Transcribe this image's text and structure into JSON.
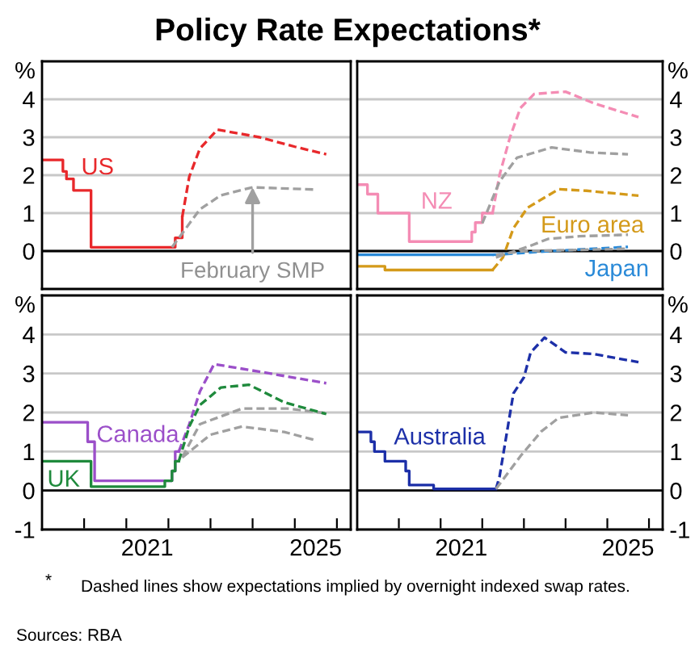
{
  "chart_data": [
    {
      "type": "line",
      "title": "Policy Rate Expectations*",
      "ylabel": "%",
      "xlim": [
        "2019-01",
        "2026-05"
      ],
      "ylim": [
        -1,
        5
      ],
      "yticks": [
        0,
        1,
        2,
        3,
        4
      ],
      "tick_labels": "y",
      "grid": "y",
      "ref_lines": [
        {
          "axis": "y",
          "value": 0,
          "color": "#000000"
        }
      ],
      "annotations": [
        {
          "text": "February SMP",
          "x": "2024-01",
          "y": 1.68
        },
        "*",
        "Dashed lines show expectations implied by overnight indexed swap rates.",
        "Sources: RBA"
      ],
      "series": [
        {
          "name": "US",
          "type": "step",
          "line_style": "solid",
          "color": "#e8282b",
          "x": [
            "2019-01",
            "2019-07",
            "2019-08",
            "2019-10",
            "2020-03",
            "2022-03",
            "2022-05"
          ],
          "values": [
            2.4,
            2.1,
            1.9,
            1.6,
            0.1,
            0.35,
            0.9
          ]
        },
        {
          "line_style": "dashed",
          "color": "#e8282b",
          "x": [
            "2022-05",
            "2022-07",
            "2022-10",
            "2023-03",
            "2023-06",
            "2024-03",
            "2025-01",
            "2025-10"
          ],
          "values": [
            0.9,
            1.96,
            2.7,
            3.2,
            3.15,
            3.0,
            2.75,
            2.55
          ]
        },
        {
          "line_style": "dashed",
          "color": "#a0a0a0",
          "x": [
            "2022-02",
            "2022-10",
            "2023-04",
            "2024-01",
            "2025-07"
          ],
          "values": [
            0.1,
            1.1,
            1.47,
            1.68,
            1.62
          ]
        }
      ]
    },
    {
      "type": "line",
      "ylabel": "%",
      "xlim": [
        "2019-01",
        "2026-05"
      ],
      "ylim": [
        -1,
        5
      ],
      "yticks": [
        0,
        1,
        2,
        3,
        4
      ],
      "tick_labels": "y",
      "grid": "y",
      "ref_lines": [
        {
          "axis": "y",
          "value": 0,
          "color": "#000000"
        }
      ],
      "series": [
        {
          "name": "NZ",
          "type": "step",
          "line_style": "solid",
          "color": "#f48cb4",
          "x": [
            "2019-01",
            "2019-04",
            "2019-07",
            "2020-04",
            "2021-10",
            "2021-11",
            "2022-01",
            "2022-04"
          ],
          "values": [
            1.75,
            1.5,
            1.0,
            0.25,
            0.5,
            0.75,
            1.0,
            1.0
          ]
        },
        {
          "line_style": "dashed",
          "color": "#f48cb4",
          "x": [
            "2022-04",
            "2022-06",
            "2022-09",
            "2022-12",
            "2023-04",
            "2024-01",
            "2024-09",
            "2025-04",
            "2025-10"
          ],
          "values": [
            1.0,
            2.0,
            3.0,
            3.77,
            4.14,
            4.2,
            3.9,
            3.7,
            3.53
          ]
        },
        {
          "line_style": "dashed",
          "color": "#a0a0a0",
          "x": [
            "2022-01",
            "2022-06",
            "2022-11",
            "2023-09",
            "2024-08",
            "2025-07"
          ],
          "values": [
            0.73,
            1.83,
            2.46,
            2.73,
            2.6,
            2.55
          ]
        },
        {
          "name": "Euro area",
          "type": "step",
          "line_style": "solid",
          "color": "#d49a1a",
          "x": [
            "2019-01",
            "2019-09",
            "2022-04"
          ],
          "values": [
            -0.4,
            -0.5,
            -0.5
          ]
        },
        {
          "line_style": "dashed",
          "color": "#d49a1a",
          "x": [
            "2022-04",
            "2022-07",
            "2022-10",
            "2023-02",
            "2023-11",
            "2024-07",
            "2025-10"
          ],
          "values": [
            -0.5,
            -0.17,
            0.6,
            1.14,
            1.63,
            1.59,
            1.46
          ]
        },
        {
          "line_style": "dashed",
          "color": "#a0a0a0",
          "x": [
            "2022-05",
            "2023-02",
            "2023-08",
            "2024-05",
            "2025-07"
          ],
          "values": [
            -0.17,
            0.11,
            0.32,
            0.39,
            0.43
          ]
        },
        {
          "name": "Japan",
          "type": "step",
          "line_style": "solid",
          "color": "#2a8ad8",
          "x": [
            "2019-01",
            "2022-04"
          ],
          "values": [
            -0.1,
            -0.1
          ]
        },
        {
          "line_style": "dashed",
          "color": "#2a8ad8",
          "x": [
            "2022-04",
            "2023-09",
            "2025-07"
          ],
          "values": [
            -0.1,
            0.0,
            0.11
          ]
        },
        {
          "line_style": "dashed",
          "color": "#a0a0a0",
          "x": [
            "2022-05",
            "2023-01",
            "2025-07"
          ],
          "values": [
            -0.1,
            0.0,
            0.06
          ]
        }
      ]
    },
    {
      "type": "line",
      "ylabel": "%",
      "xlim": [
        "2019-01",
        "2026-05"
      ],
      "ylim": [
        -1,
        5
      ],
      "yticks": [
        -1,
        0,
        1,
        2,
        3,
        4
      ],
      "grid": "y",
      "xticks": [
        {
          "value": "2020-01",
          "label": null
        },
        {
          "value": "2021-01",
          "label": null
        },
        {
          "value": "2022-01",
          "label": null
        },
        {
          "value": "2023-01",
          "label": null
        },
        {
          "value": "2024-01",
          "label": null
        },
        {
          "value": "2025-01",
          "label": null
        },
        {
          "value": "2026-01",
          "label": null
        },
        {
          "value": "2021-07",
          "label": "2021"
        },
        {
          "value": "2025-07",
          "label": "2025"
        }
      ],
      "ref_lines": [
        {
          "axis": "y",
          "value": 0,
          "color": "#000000"
        }
      ],
      "series": [
        {
          "name": "Canada",
          "type": "step",
          "line_style": "solid",
          "color": "#9b4fc9",
          "x": [
            "2019-01",
            "2020-02",
            "2020-04",
            "2022-02",
            "2022-03",
            "2022-04"
          ],
          "values": [
            1.75,
            1.25,
            0.25,
            0.5,
            1.0,
            1.0
          ]
        },
        {
          "line_style": "dashed",
          "color": "#9b4fc9",
          "x": [
            "2022-04",
            "2022-07",
            "2022-10",
            "2023-02",
            "2024-04",
            "2025-10"
          ],
          "values": [
            1.0,
            1.7,
            2.54,
            3.24,
            3.03,
            2.75
          ]
        },
        {
          "line_style": "dashed",
          "color": "#a0a0a0",
          "x": [
            "2022-05",
            "2022-10",
            "2023-10",
            "2024-11",
            "2025-10"
          ],
          "values": [
            0.85,
            1.7,
            2.1,
            2.1,
            1.98
          ]
        },
        {
          "name": "UK",
          "type": "step",
          "line_style": "solid",
          "color": "#1f8a3c",
          "x": [
            "2019-01",
            "2020-03",
            "2021-12",
            "2022-02",
            "2022-03",
            "2022-04"
          ],
          "values": [
            0.75,
            0.1,
            0.25,
            0.5,
            0.75,
            0.75
          ]
        },
        {
          "line_style": "dashed",
          "color": "#1f8a3c",
          "x": [
            "2022-04",
            "2022-07",
            "2022-10",
            "2023-04",
            "2023-12",
            "2024-10",
            "2025-10"
          ],
          "values": [
            0.75,
            1.64,
            2.19,
            2.64,
            2.71,
            2.26,
            1.96
          ]
        },
        {
          "line_style": "dashed",
          "color": "#a0a0a0",
          "x": [
            "2022-05",
            "2023-01",
            "2023-10",
            "2024-10",
            "2025-07"
          ],
          "values": [
            0.85,
            1.43,
            1.64,
            1.5,
            1.29
          ]
        }
      ]
    },
    {
      "type": "line",
      "ylabel": "%",
      "xlim": [
        "2019-01",
        "2026-05"
      ],
      "ylim": [
        -1,
        5
      ],
      "yticks": [
        -1,
        0,
        1,
        2,
        3,
        4
      ],
      "grid": "y",
      "xticks": [
        {
          "value": "2020-01",
          "label": null
        },
        {
          "value": "2021-01",
          "label": null
        },
        {
          "value": "2022-01",
          "label": null
        },
        {
          "value": "2023-01",
          "label": null
        },
        {
          "value": "2024-01",
          "label": null
        },
        {
          "value": "2025-01",
          "label": null
        },
        {
          "value": "2026-01",
          "label": null
        },
        {
          "value": "2021-07",
          "label": "2021"
        },
        {
          "value": "2025-07",
          "label": "2025"
        }
      ],
      "ref_lines": [
        {
          "axis": "y",
          "value": 0,
          "color": "#000000"
        }
      ],
      "series": [
        {
          "name": "Australia",
          "type": "step",
          "line_style": "solid",
          "color": "#1c2fa8",
          "x": [
            "2019-01",
            "2019-05",
            "2019-06",
            "2019-09",
            "2020-03",
            "2020-04",
            "2020-11",
            "2022-05"
          ],
          "values": [
            1.5,
            1.25,
            1.0,
            0.75,
            0.5,
            0.14,
            0.04,
            0.04
          ]
        },
        {
          "line_style": "dashed",
          "color": "#1c2fa8",
          "x": [
            "2022-05",
            "2022-06",
            "2022-10",
            "2023-01",
            "2023-03",
            "2023-07",
            "2024-01",
            "2024-09",
            "2025-10"
          ],
          "values": [
            0.04,
            0.35,
            2.49,
            2.9,
            3.54,
            3.92,
            3.54,
            3.5,
            3.29
          ]
        },
        {
          "line_style": "dashed",
          "color": "#a0a0a0",
          "x": [
            "2022-05",
            "2022-12",
            "2023-06",
            "2023-11",
            "2024-09",
            "2025-07"
          ],
          "values": [
            0.04,
            0.88,
            1.51,
            1.86,
            2.0,
            1.93
          ]
        }
      ]
    }
  ]
}
